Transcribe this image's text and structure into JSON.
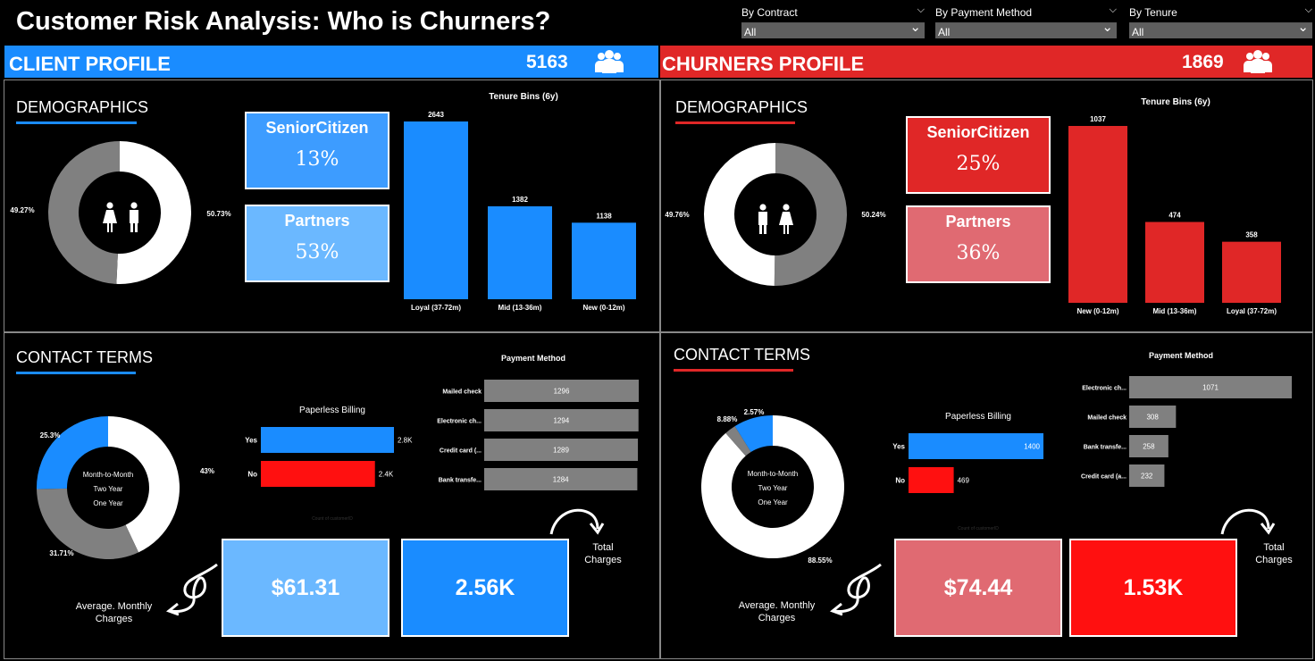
{
  "title": "Customer Risk Analysis: Who is Churners?",
  "filters": [
    {
      "label": "By Contract",
      "value": "All"
    },
    {
      "label": "By Payment Method",
      "value": "All"
    },
    {
      "label": "By Tenure",
      "value": "All"
    }
  ],
  "colors": {
    "blue": "#1a8cff",
    "lightblue": "#6bb8ff",
    "red": "#e02727",
    "pink": "#e06a72",
    "brightred": "#ff1010",
    "gray": "#808080"
  },
  "client": {
    "header": "CLIENT PROFILE",
    "count": "5163",
    "demographics_title": "DEMOGRAPHICS",
    "senior_label": "SeniorCitizen",
    "senior_value": "13%",
    "partners_label": "Partners",
    "partners_value": "53%",
    "contact_title": "CONTACT TERMS",
    "avg_monthly": "$61.31",
    "total_charges": "2.56K",
    "avg_note": "Average. Monthly Charges",
    "total_note": "Total Charges"
  },
  "churn": {
    "header": "CHURNERS PROFILE",
    "count": "1869",
    "demographics_title": "DEMOGRAPHICS",
    "senior_label": "SeniorCitizen",
    "senior_value": "25%",
    "partners_label": "Partners",
    "partners_value": "36%",
    "contact_title": "CONTACT TERMS",
    "avg_monthly": "$74.44",
    "total_charges": "1.53K",
    "avg_note": "Average. Monthly Charges",
    "total_note": "Total Charges"
  },
  "chart_data": [
    {
      "id": "client_gender",
      "type": "pie",
      "labels": [
        "50.73%",
        "49.27%"
      ],
      "values": [
        50.73,
        49.27
      ]
    },
    {
      "id": "client_tenure",
      "type": "bar",
      "title": "Tenure Bins (6y)",
      "categories": [
        "Loyal (37-72m)",
        "Mid (13-36m)",
        "New (0-12m)"
      ],
      "values": [
        2643,
        1382,
        1138
      ],
      "labels": [
        "2643",
        "1382",
        "1138"
      ]
    },
    {
      "id": "churn_gender",
      "type": "pie",
      "labels": [
        "50.24%",
        "49.76%"
      ],
      "values": [
        50.24,
        49.76
      ]
    },
    {
      "id": "churn_tenure",
      "type": "bar",
      "title": "Tenure Bins (6y)",
      "categories": [
        "New (0-12m)",
        "Mid (13-36m)",
        "Loyal (37-72m)"
      ],
      "values": [
        1037,
        474,
        358
      ],
      "labels": [
        "1037",
        "474",
        "358"
      ]
    },
    {
      "id": "client_contract",
      "type": "pie",
      "categories": [
        "Month-to-Month",
        "Two Year",
        "One Year"
      ],
      "values": [
        43,
        31.71,
        25.3
      ],
      "labels": [
        "43%",
        "31.71%",
        "25.3%"
      ]
    },
    {
      "id": "client_paperless",
      "type": "bar",
      "title": "Paperless Billing",
      "categories": [
        "Yes",
        "No"
      ],
      "values": [
        2800,
        2400
      ],
      "labels": [
        "2.8K",
        "2.4K"
      ],
      "xlabel": "Count of customerID"
    },
    {
      "id": "client_payment",
      "type": "bar",
      "title": "Payment Method",
      "categories": [
        "Mailed check",
        "Electronic ch...",
        "Credit card (...",
        "Bank transfe..."
      ],
      "values": [
        1296,
        1294,
        1289,
        1284
      ],
      "labels": [
        "1296",
        "1294",
        "1289",
        "1284"
      ]
    },
    {
      "id": "churn_contract",
      "type": "pie",
      "categories": [
        "Month-to-Month",
        "Two Year",
        "One Year"
      ],
      "values": [
        88.55,
        2.57,
        8.88
      ],
      "labels": [
        "88.55%",
        "2.57%",
        "8.88%"
      ]
    },
    {
      "id": "churn_paperless",
      "type": "bar",
      "title": "Paperless Billing",
      "categories": [
        "Yes",
        "No"
      ],
      "values": [
        1400,
        469
      ],
      "labels": [
        "1400",
        "469"
      ],
      "xlabel": "Count of customerID"
    },
    {
      "id": "churn_payment",
      "type": "bar",
      "title": "Payment Method",
      "categories": [
        "Electronic ch...",
        "Mailed check",
        "Bank transfe...",
        "Credit card (a..."
      ],
      "values": [
        1071,
        308,
        258,
        232
      ],
      "labels": [
        "1071",
        "308",
        "258",
        "232"
      ]
    }
  ]
}
